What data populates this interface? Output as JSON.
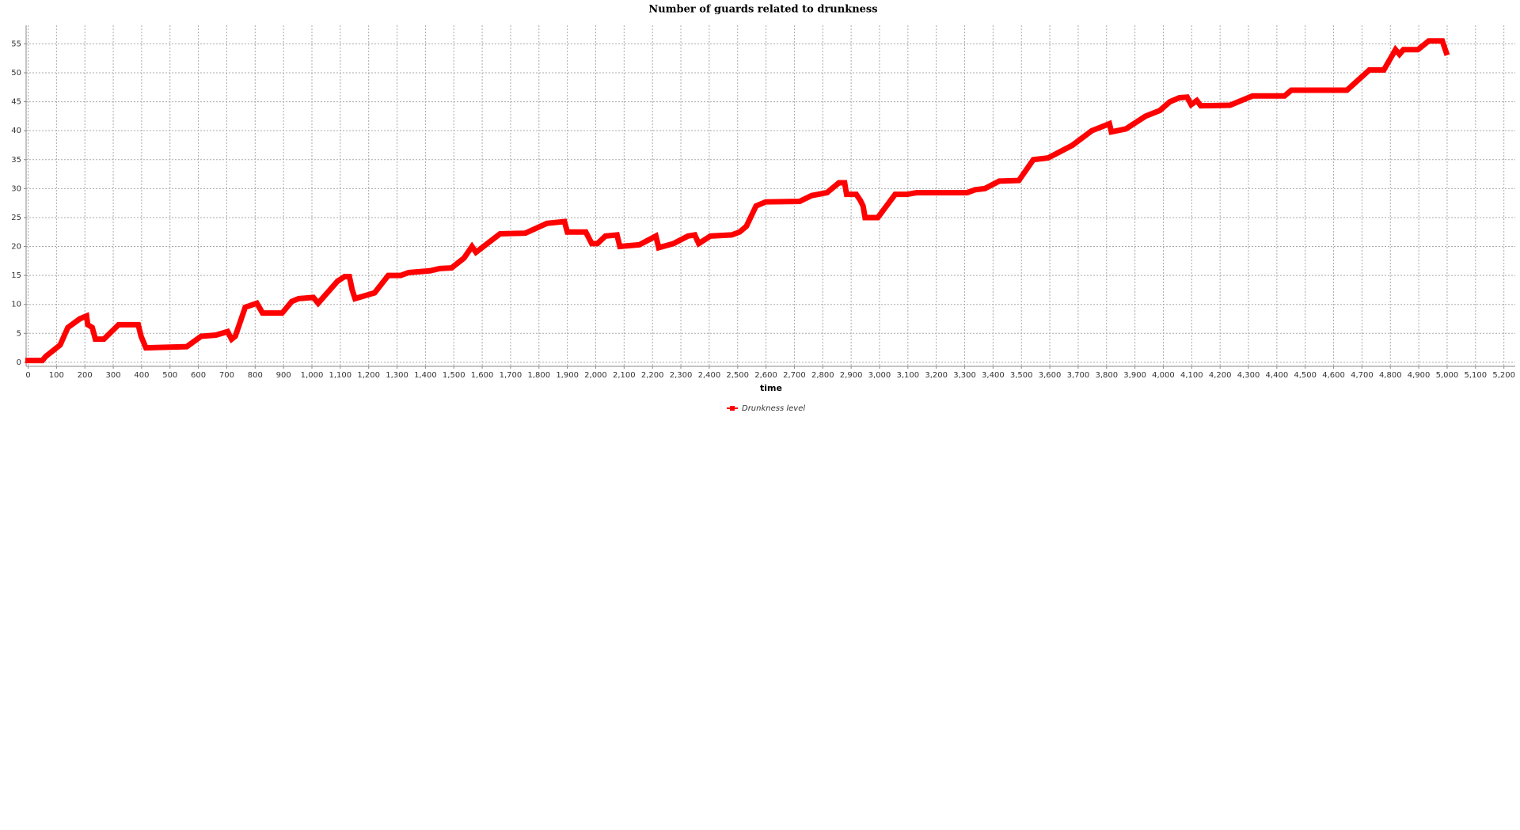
{
  "chart_data": {
    "type": "line",
    "title": "Number of guards related to drunkness",
    "x_label": "time",
    "series": [
      {
        "name": "Drunkness level",
        "color": "#ff0000",
        "x": [
          0,
          50,
          62,
          113,
          140,
          182,
          206,
          210,
          226,
          237,
          267,
          319,
          388,
          398,
          415,
          559,
          610,
          662,
          703,
          717,
          730,
          765,
          806,
          826,
          895,
          929,
          953,
          1005,
          1022,
          1090,
          1115,
          1132,
          1142,
          1152,
          1221,
          1269,
          1313,
          1341,
          1416,
          1451,
          1492,
          1536,
          1564,
          1578,
          1663,
          1752,
          1828,
          1890,
          1900,
          1965,
          1986,
          2006,
          2034,
          2075,
          2085,
          2154,
          2212,
          2222,
          2274,
          2325,
          2349,
          2363,
          2404,
          2479,
          2507,
          2531,
          2565,
          2599,
          2719,
          2761,
          2815,
          2857,
          2877,
          2884,
          2918,
          2932,
          2942,
          2949,
          2994,
          3055,
          3097,
          3131,
          3309,
          3337,
          3371,
          3422,
          3491,
          3542,
          3594,
          3680,
          3748,
          3810,
          3817,
          3868,
          3937,
          3988,
          4023,
          4057,
          4084,
          4098,
          4118,
          4132,
          4235,
          4314,
          4427,
          4451,
          4647,
          4726,
          4777,
          4818,
          4832,
          4846,
          4897,
          4935,
          4983,
          4997
        ],
        "values": [
          0.3,
          0.3,
          1,
          3,
          6,
          7.5,
          8,
          6.5,
          6,
          4,
          4,
          6.5,
          6.5,
          4.5,
          2.5,
          2.7,
          4.5,
          4.7,
          5.3,
          4,
          4.5,
          9.5,
          10.2,
          8.5,
          8.5,
          10.5,
          11,
          11.2,
          10.2,
          14,
          14.8,
          14.8,
          12.5,
          11,
          12,
          15,
          15,
          15.5,
          15.8,
          16.2,
          16.3,
          18,
          20,
          19,
          22.2,
          22.3,
          24,
          24.3,
          22.5,
          22.5,
          20.5,
          20.5,
          21.8,
          22,
          20,
          20.3,
          21.8,
          19.8,
          20.5,
          21.8,
          22,
          20.5,
          21.8,
          22,
          22.5,
          23.5,
          27,
          27.7,
          27.8,
          28.8,
          29.3,
          31,
          31,
          29,
          29,
          28,
          27,
          25,
          25,
          29,
          29,
          29.3,
          29.3,
          29.8,
          30,
          31.3,
          31.4,
          35,
          35.3,
          37.5,
          40,
          41.2,
          39.8,
          40.3,
          42.5,
          43.5,
          45,
          45.7,
          45.8,
          44.5,
          45.2,
          44.3,
          44.4,
          46,
          46,
          47,
          47,
          50.5,
          50.5,
          54,
          53.2,
          54,
          54,
          55.5,
          55.5,
          53.5
        ]
      }
    ],
    "xlim": [
      -7,
      5240
    ],
    "ylim": [
      -0.7,
      58.2
    ],
    "xticks": [
      0,
      100,
      200,
      300,
      400,
      500,
      600,
      700,
      800,
      900,
      {
        "value": 1000,
        "label": "1,000"
      },
      {
        "value": 1100,
        "label": "1,100"
      },
      {
        "value": 1200,
        "label": "1,200"
      },
      {
        "value": 1300,
        "label": "1,300"
      },
      {
        "value": 1400,
        "label": "1,400"
      },
      {
        "value": 1500,
        "label": "1,500"
      },
      {
        "value": 1600,
        "label": "1,600"
      },
      {
        "value": 1700,
        "label": "1,700"
      },
      {
        "value": 1800,
        "label": "1,800"
      },
      {
        "value": 1900,
        "label": "1,900"
      },
      {
        "value": 2000,
        "label": "2,000"
      },
      {
        "value": 2100,
        "label": "2,100"
      },
      {
        "value": 2200,
        "label": "2,200"
      },
      {
        "value": 2300,
        "label": "2,300"
      },
      {
        "value": 2400,
        "label": "2,400"
      },
      {
        "value": 2500,
        "label": "2,500"
      },
      {
        "value": 2600,
        "label": "2,600"
      },
      {
        "value": 2700,
        "label": "2,700"
      },
      {
        "value": 2800,
        "label": "2,800"
      },
      {
        "value": 2900,
        "label": "2,900"
      },
      {
        "value": 3000,
        "label": "3,000"
      },
      {
        "value": 3100,
        "label": "3,100"
      },
      {
        "value": 3200,
        "label": "3,200"
      },
      {
        "value": 3300,
        "label": "3,300"
      },
      {
        "value": 3400,
        "label": "3,400"
      },
      {
        "value": 3500,
        "label": "3,500"
      },
      {
        "value": 3600,
        "label": "3,600"
      },
      {
        "value": 3700,
        "label": "3,700"
      },
      {
        "value": 3800,
        "label": "3,800"
      },
      {
        "value": 3900,
        "label": "3,900"
      },
      {
        "value": 4000,
        "label": "4,000"
      },
      {
        "value": 4100,
        "label": "4,100"
      },
      {
        "value": 4200,
        "label": "4,200"
      },
      {
        "value": 4300,
        "label": "4,300"
      },
      {
        "value": 4400,
        "label": "4,400"
      },
      {
        "value": 4500,
        "label": "4,500"
      },
      {
        "value": 4600,
        "label": "4,600"
      },
      {
        "value": 4700,
        "label": "4,700"
      },
      {
        "value": 4800,
        "label": "4,800"
      },
      {
        "value": 4900,
        "label": "4,900"
      },
      {
        "value": 5000,
        "label": "5,000"
      },
      {
        "value": 5100,
        "label": "5,100"
      },
      {
        "value": 5200,
        "label": "5,200"
      }
    ],
    "yticks": [
      0,
      5,
      10,
      15,
      20,
      25,
      30,
      35,
      40,
      45,
      50,
      55
    ],
    "grid": true,
    "legend": "bottom"
  }
}
